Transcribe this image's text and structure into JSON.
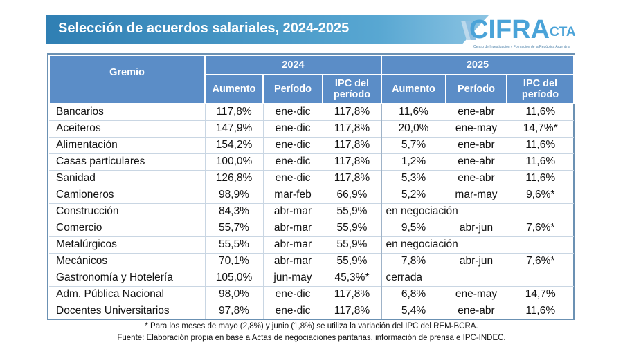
{
  "title": "Selección de acuerdos salariales, 2024-2025",
  "logo": {
    "name": "CIFRA",
    "suffix": "CTA",
    "tagline": "Centro de Investigación y Formación de la República Argentina"
  },
  "table": {
    "gremio_header": "Gremio",
    "years": [
      "2024",
      "2025"
    ],
    "col_headers": {
      "aumento": "Aumento",
      "periodo": "Período",
      "ipc": "IPC del período"
    },
    "rows": [
      {
        "gremio": "Bancarios",
        "a24": "117,8%",
        "p24": "ene-dic",
        "i24": "117,8%",
        "a25": "11,6%",
        "p25": "ene-abr",
        "i25": "11,6%"
      },
      {
        "gremio": "Aceiteros",
        "a24": "147,9%",
        "p24": "ene-dic",
        "i24": "117,8%",
        "a25": "20,0%",
        "p25": "ene-may",
        "i25": "14,7%*"
      },
      {
        "gremio": "Alimentación",
        "a24": "154,2%",
        "p24": "ene-dic",
        "i24": "117,8%",
        "a25": "5,7%",
        "p25": "ene-abr",
        "i25": "11,6%"
      },
      {
        "gremio": "Casas particulares",
        "a24": "100,0%",
        "p24": "ene-dic",
        "i24": "117,8%",
        "a25": "1,2%",
        "p25": "ene-abr",
        "i25": "11,6%"
      },
      {
        "gremio": "Sanidad",
        "a24": "126,8%",
        "p24": "ene-dic",
        "i24": "117,8%",
        "a25": "5,3%",
        "p25": "ene-abr",
        "i25": "11,6%"
      },
      {
        "gremio": "Camioneros",
        "a24": "98,9%",
        "p24": "mar-feb",
        "i24": "66,9%",
        "a25": "5,2%",
        "p25": "mar-may",
        "i25": "9,6%*"
      },
      {
        "gremio": "Construcción",
        "a24": "84,3%",
        "p24": "abr-mar",
        "i24": "55,9%",
        "status25": "en negociación"
      },
      {
        "gremio": "Comercio",
        "a24": "55,7%",
        "p24": "abr-mar",
        "i24": "55,9%",
        "a25": "9,5%",
        "p25": "abr-jun",
        "i25": "7,6%*"
      },
      {
        "gremio": "Metalúrgicos",
        "a24": "55,5%",
        "p24": "abr-mar",
        "i24": "55,9%",
        "status25": "en negociación"
      },
      {
        "gremio": "Mecánicos",
        "a24": "70,1%",
        "p24": "abr-mar",
        "i24": "55,9%",
        "a25": "7,8%",
        "p25": "abr-jun",
        "i25": "7,6%*"
      },
      {
        "gremio": "Gastronomía y Hotelería",
        "a24": "105,0%",
        "p24": "jun-may",
        "i24": "45,3%*",
        "status25": "cerrada"
      },
      {
        "gremio": "Adm. Pública Nacional",
        "a24": "98,0%",
        "p24": "ene-dic",
        "i24": "117,8%",
        "a25": "6,8%",
        "p25": "ene-may",
        "i25": "14,7%"
      },
      {
        "gremio": "Docentes Universitarios",
        "a24": "97,8%",
        "p24": "ene-dic",
        "i24": "117,8%",
        "a25": "5,4%",
        "p25": "ene-abr",
        "i25": "11,6%"
      }
    ]
  },
  "footnotes": {
    "note": "* Para los meses de mayo (2,8%) y junio (1,8%) se utiliza la variación del IPC del REM-BCRA.",
    "source": "Fuente: Elaboración propia en base a Actas de negociaciones paritarias, información de prensa e IPC-INDEC."
  },
  "colors": {
    "banner": "#2f7fb3",
    "header": "#5b8dc7",
    "logo": "#4aa3d8"
  }
}
